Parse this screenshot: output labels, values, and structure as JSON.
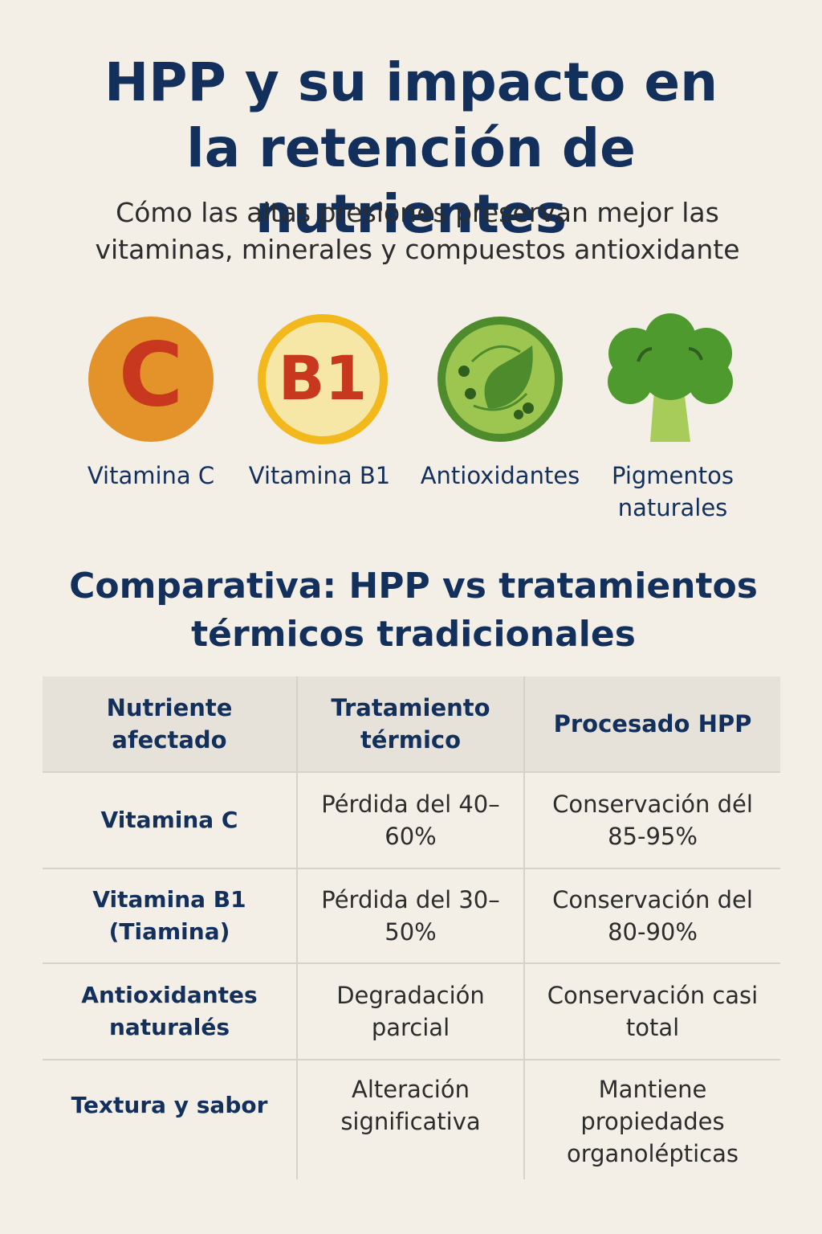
{
  "header": {
    "title": "HPP y su impacto en la retención de nutrientes",
    "subtitle": "Cómo las altas presiones preservan mejor las vitaminas, minerales y compuestos antioxidante"
  },
  "nutrients": [
    {
      "icon": "C",
      "label": "Vitamina C"
    },
    {
      "icon": "B1",
      "label": "Vitamina B1"
    },
    {
      "label": "Antioxidantes"
    },
    {
      "label": "Pigmentos naturales"
    }
  ],
  "comparison": {
    "title": "Comparativa: HPP vs tratamientos térmicos tradicionales",
    "columns": [
      "Nutriente afectado",
      "Tratamiento térmico",
      "Procesado HPP"
    ],
    "rows": [
      [
        "Vitamina C",
        "Pérdida del 40–60%",
        "Conservación dél 85-95%"
      ],
      [
        "Vitamina B1 (Tiamina)",
        "Pérdida del 30–50%",
        "Conservación del 80-90%"
      ],
      [
        "Antioxidantes naturalés",
        "Degradación parcial",
        "Conservación casi total"
      ],
      [
        "Textura y sabor",
        "Alteración significativa",
        "Mantiene propiedades organolépticas"
      ]
    ]
  }
}
